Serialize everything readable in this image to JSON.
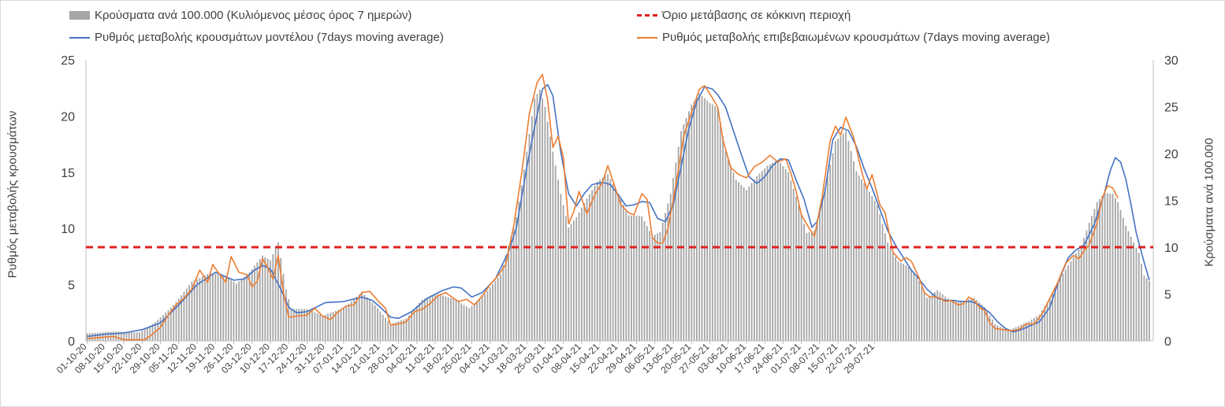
{
  "chart_data": {
    "type": "bar+line",
    "title": "",
    "legend": {
      "bars": "Κρούσματα ανά 100.000 (Κυλιόμενος μέσος όρος 7 ημερών)",
      "threshold": "Όριο μετάβασης σε κόκκινη περιοχή",
      "model_line": "Ρυθμός μεταβολής κρουσμάτων μοντέλου (7days moving average)",
      "confirmed_line": "Ρυθμός μεταβολής επιβεβαιωμένων κρουσμάτων (7days moving average)",
      "placement": "top"
    },
    "ylabel_left": "Ρυθμός μεταβολής κρουσμάτων",
    "ylabel_right": "Κρούσματα ανά 100.000",
    "ylim_left": [
      0,
      25
    ],
    "ylim_right": [
      0,
      30
    ],
    "yticks_left": [
      "0",
      "5",
      "10",
      "15",
      "20",
      "25"
    ],
    "yticks_right": [
      "0",
      "5",
      "10",
      "15",
      "20",
      "25",
      "30"
    ],
    "x_start": "01-10-20",
    "x_end": "04-08-21",
    "x_tick_labels": [
      "01-10-20",
      "08-10-20",
      "15-10-20",
      "22-10-20",
      "29-10-20",
      "05-11-20",
      "12-11-20",
      "19-11-20",
      "26-11-20",
      "03-12-20",
      "10-12-20",
      "17-12-20",
      "24-12-20",
      "31-12-20",
      "07-01-21",
      "14-01-21",
      "21-01-21",
      "28-01-21",
      "04-02-21",
      "11-02-21",
      "18-02-21",
      "25-02-21",
      "04-03-21",
      "11-03-21",
      "18-03-21",
      "25-03-21",
      "01-04-21",
      "08-04-21",
      "15-04-21",
      "22-04-21",
      "29-04-21",
      "06-05-21",
      "13-05-21",
      "20-05-21",
      "27-05-21",
      "03-06-21",
      "10-06-21",
      "17-06-21",
      "24-06-21",
      "01-07-21",
      "08-07-21",
      "15-07-21",
      "22-07-21",
      "29-07-21"
    ],
    "threshold_value": 10,
    "model_keypoints": [
      [
        0,
        0.4
      ],
      [
        7,
        0.6
      ],
      [
        14,
        0.7
      ],
      [
        21,
        1.0
      ],
      [
        28,
        1.6
      ],
      [
        35,
        3.2
      ],
      [
        42,
        5.0
      ],
      [
        49,
        6.1
      ],
      [
        56,
        5.4
      ],
      [
        60,
        5.5
      ],
      [
        64,
        6.3
      ],
      [
        67,
        6.7
      ],
      [
        70,
        6.4
      ],
      [
        74,
        4.6
      ],
      [
        77,
        3.0
      ],
      [
        80,
        2.5
      ],
      [
        84,
        2.6
      ],
      [
        91,
        3.4
      ],
      [
        98,
        3.5
      ],
      [
        105,
        3.9
      ],
      [
        109,
        3.6
      ],
      [
        112,
        3.0
      ],
      [
        116,
        2.1
      ],
      [
        119,
        2.0
      ],
      [
        124,
        2.6
      ],
      [
        130,
        3.8
      ],
      [
        136,
        4.5
      ],
      [
        140,
        4.8
      ],
      [
        143,
        4.7
      ],
      [
        147,
        3.9
      ],
      [
        151,
        4.3
      ],
      [
        156,
        5.5
      ],
      [
        161,
        7.9
      ],
      [
        164,
        10.0
      ],
      [
        168,
        15.4
      ],
      [
        171,
        19.0
      ],
      [
        174,
        22.4
      ],
      [
        176,
        22.8
      ],
      [
        178,
        21.8
      ],
      [
        181,
        16.8
      ],
      [
        184,
        13.1
      ],
      [
        187,
        12.0
      ],
      [
        190,
        13.1
      ],
      [
        193,
        13.9
      ],
      [
        197,
        14.1
      ],
      [
        200,
        13.9
      ],
      [
        203,
        13.0
      ],
      [
        206,
        12.0
      ],
      [
        209,
        12.1
      ],
      [
        212,
        12.4
      ],
      [
        215,
        12.3
      ],
      [
        218,
        10.9
      ],
      [
        221,
        10.6
      ],
      [
        224,
        12.1
      ],
      [
        227,
        15.5
      ],
      [
        230,
        18.9
      ],
      [
        233,
        21.3
      ],
      [
        236,
        22.6
      ],
      [
        239,
        22.4
      ],
      [
        241,
        21.9
      ],
      [
        244,
        20.8
      ],
      [
        247,
        18.7
      ],
      [
        250,
        16.6
      ],
      [
        253,
        14.6
      ],
      [
        256,
        14.0
      ],
      [
        259,
        14.6
      ],
      [
        262,
        15.6
      ],
      [
        265,
        16.2
      ],
      [
        268,
        16.1
      ],
      [
        271,
        14.3
      ],
      [
        274,
        12.6
      ],
      [
        277,
        10.1
      ],
      [
        279,
        10.6
      ],
      [
        282,
        13.3
      ],
      [
        285,
        17.9
      ],
      [
        288,
        19.0
      ],
      [
        291,
        18.7
      ],
      [
        294,
        17.3
      ],
      [
        297,
        15.3
      ],
      [
        300,
        13.6
      ],
      [
        303,
        11.7
      ],
      [
        306,
        9.8
      ],
      [
        309,
        8.5
      ],
      [
        312,
        7.4
      ],
      [
        315,
        6.3
      ],
      [
        318,
        5.5
      ],
      [
        321,
        4.6
      ],
      [
        325,
        3.8
      ],
      [
        328,
        3.6
      ],
      [
        331,
        3.6
      ],
      [
        334,
        3.5
      ],
      [
        338,
        3.5
      ],
      [
        341,
        3.2
      ],
      [
        345,
        2.5
      ],
      [
        348,
        1.7
      ],
      [
        351,
        1.1
      ],
      [
        354,
        0.8
      ],
      [
        357,
        1.0
      ],
      [
        360,
        1.3
      ],
      [
        364,
        1.7
      ],
      [
        368,
        3.0
      ],
      [
        371,
        5.1
      ],
      [
        375,
        7.4
      ],
      [
        378,
        8.1
      ],
      [
        381,
        8.5
      ],
      [
        385,
        10.4
      ],
      [
        389,
        13.3
      ],
      [
        391,
        15.1
      ],
      [
        393,
        16.3
      ],
      [
        395,
        15.9
      ],
      [
        397,
        14.4
      ],
      [
        399,
        12.1
      ],
      [
        401,
        9.6
      ],
      [
        404,
        7.0
      ],
      [
        406,
        5.4
      ]
    ],
    "confirmed_keypoints": [
      [
        0,
        0.2
      ],
      [
        5,
        0.3
      ],
      [
        10,
        0.4
      ],
      [
        14,
        0.1
      ],
      [
        18,
        0.1
      ],
      [
        22,
        0.1
      ],
      [
        25,
        0.6
      ],
      [
        28,
        1.2
      ],
      [
        31,
        2.3
      ],
      [
        34,
        3.2
      ],
      [
        37,
        3.8
      ],
      [
        40,
        4.6
      ],
      [
        43,
        6.3
      ],
      [
        46,
        5.2
      ],
      [
        48,
        6.8
      ],
      [
        50,
        6.1
      ],
      [
        53,
        5.2
      ],
      [
        55,
        7.5
      ],
      [
        58,
        6.1
      ],
      [
        61,
        5.9
      ],
      [
        63,
        4.8
      ],
      [
        65,
        5.3
      ],
      [
        67,
        7.3
      ],
      [
        69,
        6.5
      ],
      [
        71,
        5.5
      ],
      [
        73,
        7.6
      ],
      [
        75,
        4.3
      ],
      [
        77,
        2.1
      ],
      [
        80,
        2.2
      ],
      [
        84,
        2.3
      ],
      [
        87,
        2.9
      ],
      [
        90,
        2.2
      ],
      [
        93,
        1.9
      ],
      [
        96,
        2.6
      ],
      [
        99,
        3.1
      ],
      [
        102,
        3.2
      ],
      [
        105,
        4.3
      ],
      [
        108,
        4.4
      ],
      [
        111,
        3.6
      ],
      [
        114,
        2.9
      ],
      [
        116,
        1.4
      ],
      [
        119,
        1.5
      ],
      [
        122,
        1.7
      ],
      [
        125,
        2.6
      ],
      [
        128,
        2.8
      ],
      [
        131,
        3.3
      ],
      [
        134,
        4.0
      ],
      [
        137,
        4.3
      ],
      [
        140,
        3.8
      ],
      [
        142,
        3.5
      ],
      [
        145,
        3.7
      ],
      [
        148,
        3.2
      ],
      [
        151,
        4.0
      ],
      [
        154,
        5.0
      ],
      [
        157,
        5.8
      ],
      [
        160,
        6.8
      ],
      [
        163,
        10.2
      ],
      [
        166,
        14.8
      ],
      [
        169,
        20.2
      ],
      [
        172,
        23.0
      ],
      [
        174,
        23.7
      ],
      [
        176,
        21.4
      ],
      [
        178,
        17.2
      ],
      [
        180,
        18.2
      ],
      [
        182,
        16.3
      ],
      [
        184,
        10.4
      ],
      [
        186,
        11.5
      ],
      [
        188,
        13.3
      ],
      [
        191,
        11.3
      ],
      [
        194,
        13.0
      ],
      [
        197,
        14.1
      ],
      [
        199,
        15.6
      ],
      [
        201,
        14.2
      ],
      [
        204,
        12.1
      ],
      [
        207,
        11.4
      ],
      [
        209,
        11.2
      ],
      [
        212,
        13.1
      ],
      [
        214,
        12.6
      ],
      [
        216,
        9.2
      ],
      [
        218,
        8.7
      ],
      [
        220,
        8.7
      ],
      [
        222,
        10.0
      ],
      [
        225,
        13.8
      ],
      [
        228,
        18.2
      ],
      [
        231,
        20.3
      ],
      [
        234,
        22.4
      ],
      [
        236,
        22.7
      ],
      [
        239,
        21.6
      ],
      [
        241,
        20.8
      ],
      [
        243,
        17.9
      ],
      [
        246,
        15.4
      ],
      [
        249,
        14.8
      ],
      [
        252,
        14.5
      ],
      [
        255,
        15.5
      ],
      [
        258,
        15.9
      ],
      [
        261,
        16.5
      ],
      [
        264,
        15.9
      ],
      [
        267,
        16.2
      ],
      [
        269,
        14.9
      ],
      [
        271,
        13.3
      ],
      [
        273,
        11.2
      ],
      [
        276,
        10.0
      ],
      [
        278,
        9.3
      ],
      [
        281,
        12.9
      ],
      [
        284,
        17.8
      ],
      [
        286,
        19.1
      ],
      [
        288,
        18.3
      ],
      [
        290,
        19.9
      ],
      [
        293,
        18.1
      ],
      [
        296,
        15.1
      ],
      [
        298,
        13.5
      ],
      [
        300,
        14.8
      ],
      [
        303,
        12.1
      ],
      [
        305,
        11.4
      ],
      [
        308,
        7.9
      ],
      [
        311,
        7.1
      ],
      [
        313,
        7.4
      ],
      [
        315,
        7.1
      ],
      [
        318,
        5.6
      ],
      [
        320,
        4.3
      ],
      [
        322,
        3.9
      ],
      [
        324,
        3.9
      ],
      [
        326,
        3.8
      ],
      [
        328,
        3.5
      ],
      [
        330,
        3.6
      ],
      [
        333,
        3.2
      ],
      [
        335,
        3.3
      ],
      [
        337,
        3.9
      ],
      [
        339,
        3.6
      ],
      [
        341,
        3.0
      ],
      [
        343,
        2.7
      ],
      [
        345,
        1.6
      ],
      [
        347,
        1.1
      ],
      [
        350,
        1.0
      ],
      [
        353,
        0.9
      ],
      [
        356,
        1.0
      ],
      [
        359,
        1.5
      ],
      [
        362,
        1.5
      ],
      [
        365,
        2.4
      ],
      [
        368,
        3.8
      ],
      [
        371,
        5.2
      ],
      [
        374,
        6.9
      ],
      [
        377,
        7.6
      ],
      [
        379,
        7.3
      ],
      [
        381,
        8.0
      ],
      [
        383,
        8.5
      ],
      [
        386,
        10.5
      ],
      [
        388,
        12.7
      ],
      [
        390,
        13.8
      ],
      [
        392,
        13.6
      ],
      [
        394,
        12.7
      ]
    ],
    "bar_keypoints": [
      [
        0,
        0.8
      ],
      [
        10,
        1.0
      ],
      [
        20,
        0.9
      ],
      [
        26,
        2.0
      ],
      [
        33,
        3.8
      ],
      [
        40,
        6.3
      ],
      [
        47,
        7.3
      ],
      [
        53,
        6.9
      ],
      [
        57,
        6.1
      ],
      [
        62,
        7.3
      ],
      [
        67,
        9.1
      ],
      [
        70,
        8.6
      ],
      [
        73,
        10.5
      ],
      [
        76,
        5.5
      ],
      [
        78,
        3.4
      ],
      [
        84,
        3.4
      ],
      [
        90,
        2.7
      ],
      [
        98,
        3.5
      ],
      [
        105,
        5.2
      ],
      [
        110,
        3.8
      ],
      [
        116,
        1.8
      ],
      [
        122,
        2.4
      ],
      [
        128,
        4.4
      ],
      [
        134,
        5.0
      ],
      [
        140,
        4.5
      ],
      [
        146,
        3.5
      ],
      [
        152,
        5.0
      ],
      [
        158,
        7.1
      ],
      [
        164,
        13.2
      ],
      [
        167,
        18.3
      ],
      [
        171,
        25.9
      ],
      [
        173,
        26.8
      ],
      [
        175,
        25.0
      ],
      [
        178,
        20.2
      ],
      [
        181,
        15.7
      ],
      [
        184,
        12.1
      ],
      [
        187,
        13.2
      ],
      [
        191,
        15.2
      ],
      [
        195,
        17.0
      ],
      [
        199,
        17.8
      ],
      [
        203,
        15.7
      ],
      [
        207,
        13.4
      ],
      [
        212,
        13.3
      ],
      [
        216,
        11.2
      ],
      [
        219,
        11.6
      ],
      [
        223,
        15.7
      ],
      [
        227,
        22.4
      ],
      [
        231,
        25.2
      ],
      [
        234,
        26.4
      ],
      [
        238,
        25.4
      ],
      [
        241,
        24.9
      ],
      [
        244,
        20.3
      ],
      [
        248,
        17.2
      ],
      [
        252,
        16.1
      ],
      [
        256,
        17.6
      ],
      [
        260,
        18.7
      ],
      [
        264,
        19.3
      ],
      [
        268,
        18.0
      ],
      [
        272,
        14.5
      ],
      [
        275,
        11.5
      ],
      [
        278,
        11.8
      ],
      [
        282,
        16.3
      ],
      [
        286,
        21.3
      ],
      [
        290,
        22.4
      ],
      [
        294,
        18.1
      ],
      [
        298,
        16.4
      ],
      [
        302,
        14.5
      ],
      [
        306,
        10.5
      ],
      [
        310,
        8.5
      ],
      [
        314,
        7.9
      ],
      [
        318,
        6.4
      ],
      [
        321,
        4.6
      ],
      [
        325,
        5.4
      ],
      [
        330,
        4.3
      ],
      [
        335,
        4.3
      ],
      [
        339,
        4.6
      ],
      [
        343,
        3.6
      ],
      [
        347,
        1.8
      ],
      [
        352,
        1.1
      ],
      [
        356,
        1.6
      ],
      [
        360,
        2.1
      ],
      [
        364,
        2.8
      ],
      [
        368,
        4.6
      ],
      [
        372,
        6.7
      ],
      [
        376,
        8.5
      ],
      [
        380,
        10.2
      ],
      [
        383,
        12.6
      ],
      [
        386,
        14.8
      ],
      [
        389,
        15.8
      ],
      [
        392,
        15.7
      ],
      [
        394,
        14.8
      ],
      [
        397,
        12.3
      ],
      [
        400,
        10.5
      ],
      [
        402,
        9.4
      ],
      [
        404,
        7.0
      ],
      [
        406,
        6.4
      ]
    ]
  }
}
